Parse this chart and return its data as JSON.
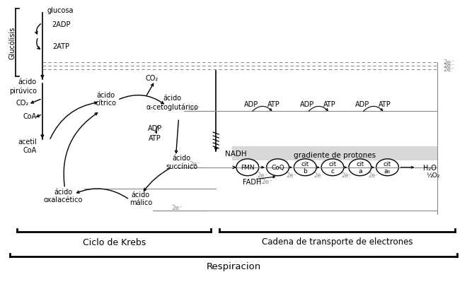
{
  "title": "Respiracion",
  "subtitle_krebs": "Ciclo de Krebs",
  "subtitle_cadena": "Cadena de transporte de electrones",
  "label_glucolisis": "Glucólisis",
  "label_glucosa": "glucosa",
  "label_2adp": "2ADP",
  "label_2atp": "2ATP",
  "label_acido_piruvico": "ácido\npirúvico",
  "label_co2_1": "CO₂",
  "label_coa": "CoA",
  "label_acetil_coa": "acetil\nCoA",
  "label_acido_citrico": "ácido\ncítrico",
  "label_co2_2": "CO₂",
  "label_acido_cetoglutarico": "ácido\nα-cetoglutárico",
  "label_adp": "ADP",
  "label_atp": "ATP",
  "label_nadh": "NADH",
  "label_acido_succinico": "ácido\nsuccínico",
  "label_acido_malico": "ácido\nmálico",
  "label_acido_oxalacetico": "ácido\noxalacético",
  "label_2e": "2e⁻",
  "label_fadh": "FADH",
  "label_fmn": "FMN",
  "label_coq": "CoQ",
  "label_cit_b": "cit\nb",
  "label_cit_c": "cit\nc",
  "label_cit_a": "cit\na",
  "label_cit_a3": "cit\na₃",
  "label_h2o": "H₂O",
  "label_half_o2": "½O₂",
  "label_gradiente": "gradiente de protones",
  "label_adp_chain": "ADP",
  "label_atp_chain": "ATP",
  "bg_color": "#ffffff",
  "line_color": "#000000",
  "gray_color": "#888888",
  "light_gray": "#d8d8d8"
}
